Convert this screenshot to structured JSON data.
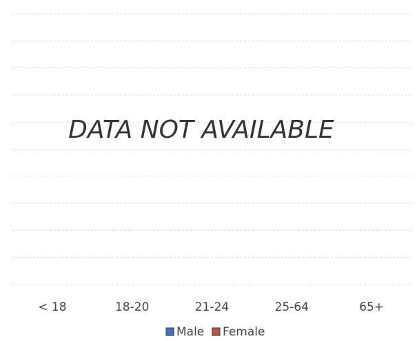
{
  "chart_data": {
    "type": "bar",
    "annotation": "DATA NOT AVAILABLE",
    "categories": [
      "< 18",
      "18-20",
      "21-24",
      "25-64",
      "65+"
    ],
    "series": [
      {
        "name": "Male",
        "color": "#4472c4",
        "values": [
          null,
          null,
          null,
          null,
          null
        ]
      },
      {
        "name": "Female",
        "color": "#c0504d",
        "values": [
          null,
          null,
          null,
          null,
          null
        ]
      }
    ],
    "grid": true,
    "legend": "bottom"
  }
}
